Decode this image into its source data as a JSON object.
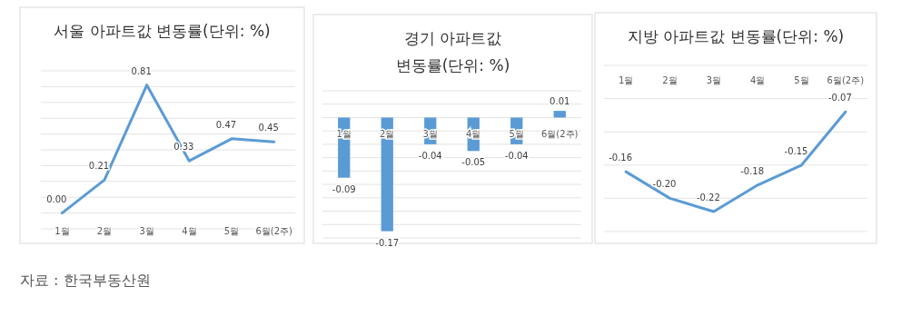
{
  "chart_data": [
    {
      "type": "line",
      "title": "서울 아파트값 변동률(단위: %)",
      "categories": [
        "1월",
        "2월",
        "3월",
        "4월",
        "5월",
        "6월(2주)"
      ],
      "values": [
        0.0,
        0.21,
        0.81,
        0.33,
        0.47,
        0.45
      ],
      "value_labels": [
        "0.00",
        "0.21",
        "0.81",
        "0.33",
        "0.47",
        "0.45"
      ],
      "color": "#5b9bd5",
      "ylim": [
        -0.1,
        0.9
      ],
      "yticks": [
        {
          "value": -0.1,
          "label": null
        },
        {
          "value": 0,
          "label": null
        },
        {
          "value": 0.1,
          "label": null
        },
        {
          "value": 0.2,
          "label": null
        },
        {
          "value": 0.3,
          "label": null
        },
        {
          "value": 0.4,
          "label": null
        },
        {
          "value": 0.5,
          "label": null
        },
        {
          "value": 0.6,
          "label": null
        },
        {
          "value": 0.7,
          "label": null
        },
        {
          "value": 0.8,
          "label": null
        },
        {
          "value": 0.9,
          "label": null
        }
      ],
      "grid": "y",
      "annotations": [
        "자료 : 한국부동산원"
      ]
    },
    {
      "type": "bar",
      "title": "경기 아파트값 변동률(단위: %)",
      "categories": [
        "1월",
        "2월",
        "3월",
        "4월",
        "5월",
        "6월(2주)"
      ],
      "values": [
        -0.09,
        -0.17,
        -0.04,
        -0.05,
        -0.04,
        0.01
      ],
      "value_labels": [
        "-0.09",
        "-0.17",
        "-0.04",
        "-0.05",
        "-0.04",
        "0.01"
      ],
      "color": "#5b9bd5",
      "ylim": [
        -0.18,
        0.04
      ],
      "yticks": [
        {
          "value": -0.18,
          "label": null
        },
        {
          "value": -0.16,
          "label": null
        },
        {
          "value": -0.14,
          "label": null
        },
        {
          "value": -0.12,
          "label": null
        },
        {
          "value": -0.1,
          "label": null
        },
        {
          "value": -0.08,
          "label": null
        },
        {
          "value": -0.06,
          "label": null
        },
        {
          "value": -0.04,
          "label": null
        },
        {
          "value": -0.02,
          "label": null
        },
        {
          "value": 0,
          "label": null
        },
        {
          "value": 0.02,
          "label": null
        },
        {
          "value": 0.04,
          "label": null
        }
      ],
      "grid": "y"
    },
    {
      "type": "line",
      "title": "지방 아파트값 변동률(단위: %)",
      "categories": [
        "1월",
        "2월",
        "3월",
        "4월",
        "5월",
        "6월(2주)"
      ],
      "values": [
        -0.16,
        -0.2,
        -0.22,
        -0.18,
        -0.15,
        -0.07
      ],
      "value_labels": [
        "-0.16",
        "-0.20",
        "-0.22",
        "-0.18",
        "-0.15",
        "-0.07"
      ],
      "color": "#5b9bd5",
      "ylim": [
        -0.25,
        0
      ],
      "yticks": [
        {
          "value": -0.25,
          "label": null
        },
        {
          "value": -0.2,
          "label": null
        },
        {
          "value": -0.15,
          "label": null
        },
        {
          "value": -0.1,
          "label": null
        },
        {
          "value": -0.05,
          "label": null
        },
        {
          "value": 0,
          "label": null
        }
      ],
      "grid": "y"
    }
  ]
}
